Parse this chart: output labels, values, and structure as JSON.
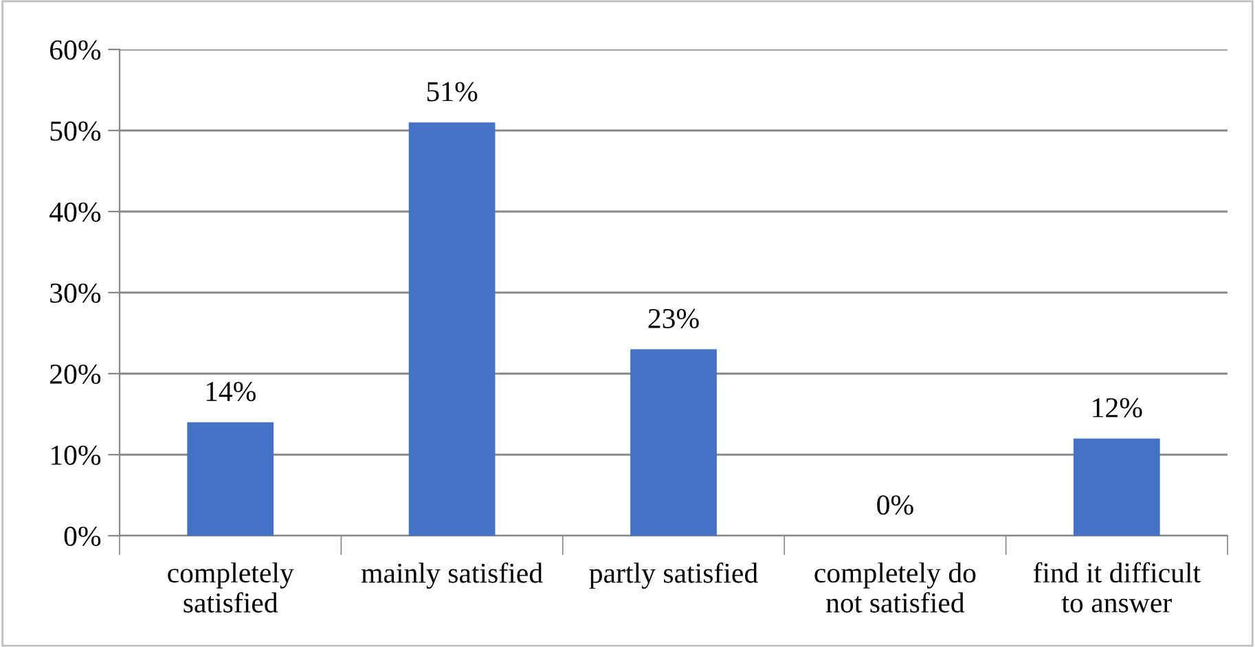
{
  "chart_data": {
    "type": "bar",
    "categories": [
      "completely\nsatisfied",
      "mainly satisfied",
      "partly satisfied",
      "completely do\nnot satisfied",
      "find it difficult\nto answer"
    ],
    "values": [
      14,
      51,
      23,
      0,
      12
    ],
    "value_labels": [
      "14%",
      "51%",
      "23%",
      "0%",
      "12%"
    ],
    "color": "#4472c4",
    "ylim": [
      0,
      60
    ],
    "yticks": [
      {
        "value": 0,
        "label": "0%"
      },
      {
        "value": 10,
        "label": "10%"
      },
      {
        "value": 20,
        "label": "20%"
      },
      {
        "value": 30,
        "label": "30%"
      },
      {
        "value": 40,
        "label": "40%"
      },
      {
        "value": 50,
        "label": "50%"
      },
      {
        "value": 60,
        "label": "60%"
      }
    ],
    "grid": "y"
  }
}
